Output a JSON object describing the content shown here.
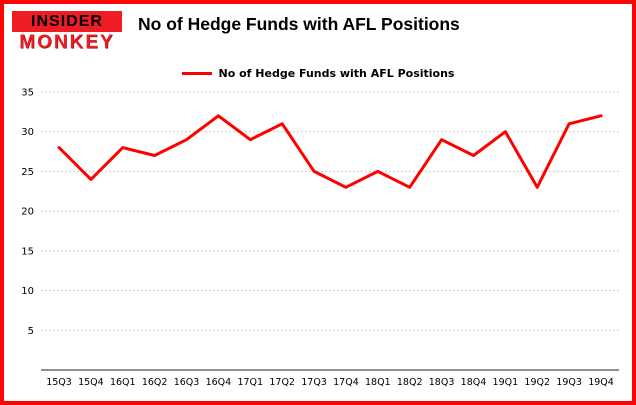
{
  "brand": {
    "line1": "INSIDER",
    "line2": "MONKEY",
    "red": "#ee1c25"
  },
  "header": {
    "title": "No of Hedge Funds with AFL Positions"
  },
  "legend": {
    "label": "No of Hedge Funds with AFL Positions",
    "color": "#ff0000"
  },
  "chart_data": {
    "type": "line",
    "title": "No of Hedge Funds with AFL Positions",
    "categories": [
      "15Q3",
      "15Q4",
      "16Q1",
      "16Q2",
      "16Q3",
      "16Q4",
      "17Q1",
      "17Q2",
      "17Q3",
      "17Q4",
      "18Q1",
      "18Q2",
      "18Q3",
      "18Q4",
      "19Q1",
      "19Q2",
      "19Q3",
      "19Q4"
    ],
    "series": [
      {
        "name": "No of Hedge Funds with AFL Positions",
        "values": [
          28,
          24,
          28,
          27,
          29,
          32,
          29,
          31,
          25,
          23,
          25,
          23,
          29,
          27,
          30,
          23,
          31,
          32
        ]
      }
    ],
    "xlabel": "",
    "ylabel": "",
    "ylim": [
      0,
      35
    ],
    "yticks": [
      5,
      10,
      15,
      20,
      25,
      30,
      35
    ],
    "grid": true,
    "legend_position": "top",
    "line_color": "#ff0000"
  }
}
